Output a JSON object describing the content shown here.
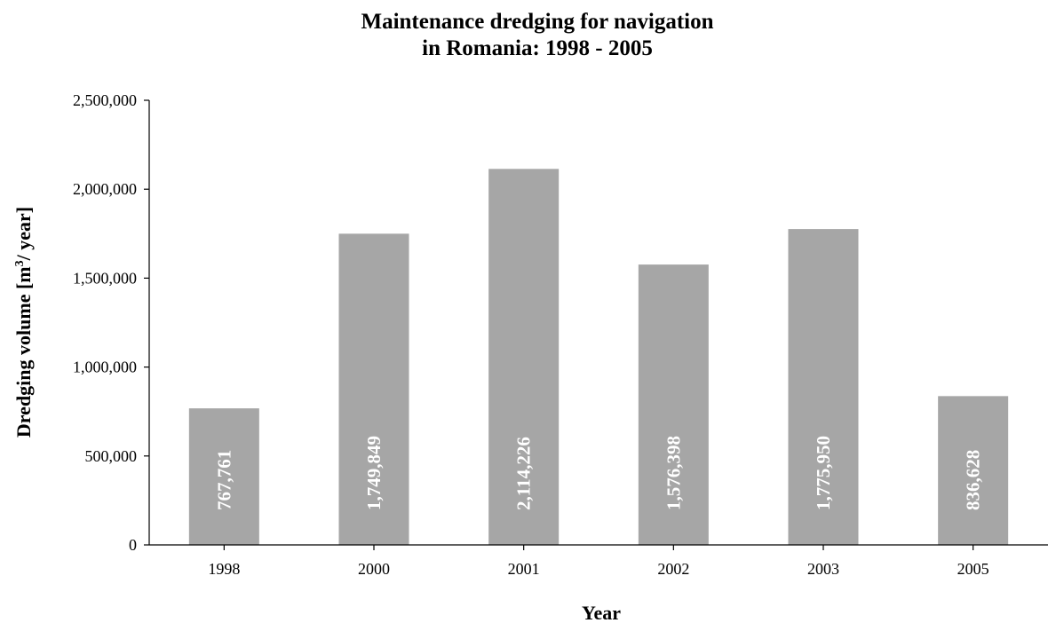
{
  "chart_data": {
    "type": "bar",
    "title_line1": "Maintenance dredging for navigation",
    "title_line2": "in Romania: 1998 - 2005",
    "xlabel": "Year",
    "ylabel_main": "Dredging volume [m",
    "ylabel_sup": "3",
    "ylabel_tail": "/ year]",
    "categories": [
      "1998",
      "2000",
      "2001",
      "2002",
      "2003",
      "2005"
    ],
    "values": [
      767761,
      1749849,
      2114226,
      1576398,
      1775950,
      836628
    ],
    "data_labels": [
      "767,761",
      "1,749,849",
      "2,114,226",
      "1,576,398",
      "1,775,950",
      "836,628"
    ],
    "ylim": [
      0,
      2500000
    ],
    "yticks": [
      0,
      500000,
      1000000,
      1500000,
      2000000,
      2500000
    ],
    "ytick_labels": [
      "0",
      "500,000",
      "1,000,000",
      "1,500,000",
      "2,000,000",
      "2,500,000"
    ],
    "grid": false,
    "bar_color": "#a6a6a6"
  }
}
